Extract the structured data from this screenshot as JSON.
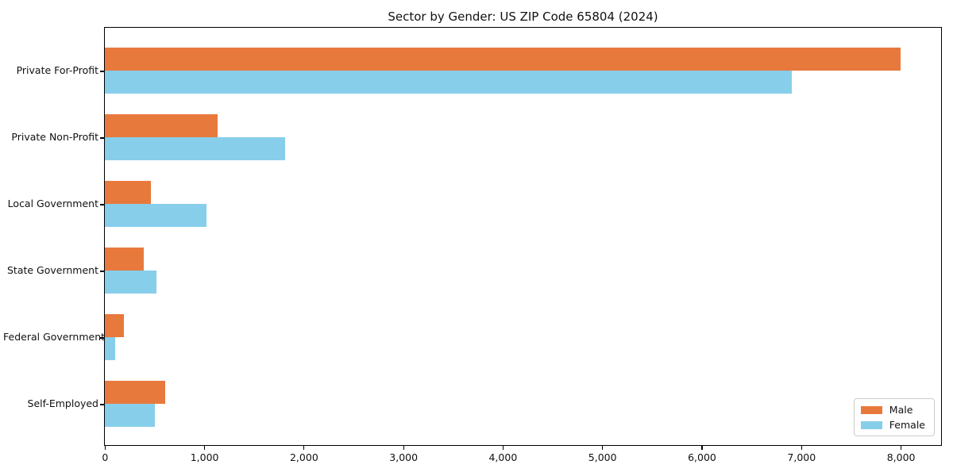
{
  "chart_data": {
    "type": "bar",
    "orientation": "horizontal",
    "title": "Sector by Gender: US ZIP Code 65804 (2024)",
    "categories": [
      "Private For-Profit",
      "Private Non-Profit",
      "Local Government",
      "State Government",
      "Federal Government",
      "Self-Employed"
    ],
    "series": [
      {
        "name": "Male",
        "color": "#E8793C",
        "values": [
          8000,
          1130,
          460,
          390,
          195,
          610
        ]
      },
      {
        "name": "Female",
        "color": "#87CEEB",
        "values": [
          6900,
          1810,
          1020,
          520,
          100,
          500
        ]
      }
    ],
    "xlabel": "",
    "ylabel": "",
    "xlim": [
      0,
      8400
    ],
    "xticks": [
      0,
      1000,
      2000,
      3000,
      4000,
      5000,
      6000,
      7000,
      8000
    ],
    "xtick_labels": [
      "0",
      "1,000",
      "2,000",
      "3,000",
      "4,000",
      "5,000",
      "6,000",
      "7,000",
      "8,000"
    ],
    "grid": false,
    "legend": {
      "position": "lower right",
      "entries": [
        "Male",
        "Female"
      ]
    },
    "colors": {
      "background": "#FFFFFF",
      "axes_border": "#000000",
      "text": "#111111",
      "legend_border": "#CCCCCC"
    }
  }
}
